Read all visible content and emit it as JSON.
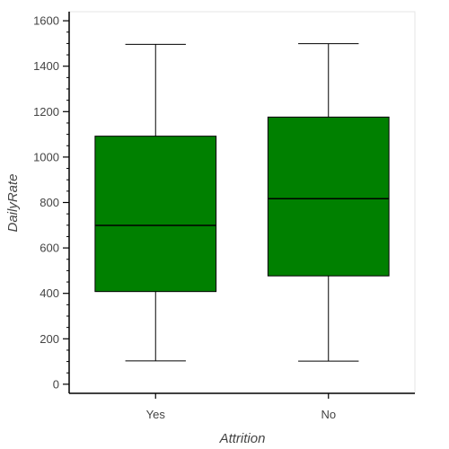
{
  "chart_data": {
    "type": "box",
    "title": "",
    "xlabel": "Attrition",
    "ylabel": "DailyRate",
    "ylim": [
      -40,
      1640
    ],
    "yticks": [
      0,
      200,
      400,
      600,
      800,
      1000,
      1200,
      1400,
      1600
    ],
    "ytick_labels": [
      "0",
      "200",
      "400",
      "600",
      "800",
      "1000",
      "1200",
      "1400",
      "1600"
    ],
    "categories": [
      "Yes",
      "No"
    ],
    "boxes": [
      {
        "category": "Yes",
        "whisker_low": 103,
        "q1": 408,
        "median": 699,
        "q3": 1092,
        "whisker_high": 1496
      },
      {
        "category": "No",
        "whisker_low": 102,
        "q1": 477,
        "median": 817,
        "q3": 1176,
        "whisker_high": 1499
      }
    ],
    "box_color": "#008000",
    "line_color": "#000000",
    "grid": false
  }
}
